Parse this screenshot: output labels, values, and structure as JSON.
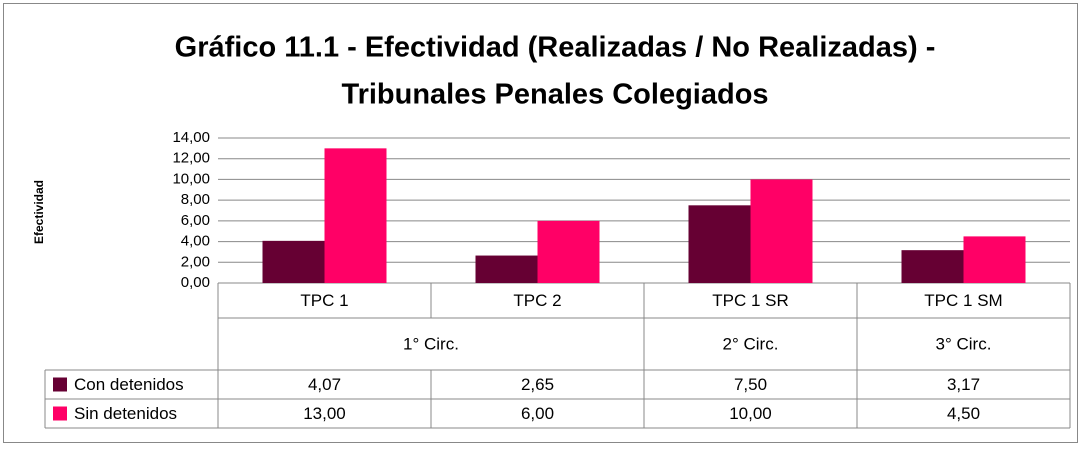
{
  "chart_data": {
    "type": "bar",
    "title": [
      "Gráfico 11.1 - Efectividad (Realizadas / No Realizadas) -",
      "Tribunales Penales Colegiados"
    ],
    "y_label": "Efectividad",
    "categories": [
      "TPC 1",
      "TPC 2",
      "TPC 1 SR",
      "TPC 1 SM"
    ],
    "group_labels": [
      "1° Circ.",
      null,
      "2° Circ.",
      "3° Circ."
    ],
    "series": [
      {
        "name": "Con detenidos",
        "color": "#660033",
        "values": [
          4.07,
          2.65,
          7.5,
          3.17
        ],
        "value_labels": [
          "4,07",
          "2,65",
          "7,50",
          "3,17"
        ]
      },
      {
        "name": "Sin detenidos",
        "color": "#ff0066",
        "values": [
          13,
          6,
          10,
          4.5
        ],
        "value_labels": [
          "13,00",
          "6,00",
          "10,00",
          "4,50"
        ]
      }
    ],
    "ylim": [
      0,
      14
    ],
    "yticks": [
      {
        "value": 0,
        "label": "0,00"
      },
      {
        "value": 2,
        "label": "2,00"
      },
      {
        "value": 4,
        "label": "4,00"
      },
      {
        "value": 6,
        "label": "6,00"
      },
      {
        "value": 8,
        "label": "8,00"
      },
      {
        "value": 10,
        "label": "10,00"
      },
      {
        "value": 12,
        "label": "12,00"
      },
      {
        "value": 14,
        "label": "14,00"
      }
    ],
    "grid": true
  }
}
